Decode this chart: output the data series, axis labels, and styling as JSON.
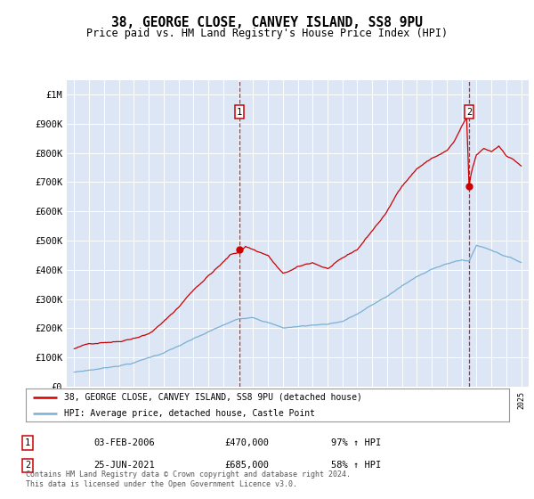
{
  "title1": "38, GEORGE CLOSE, CANVEY ISLAND, SS8 9PU",
  "title2": "Price paid vs. HM Land Registry's House Price Index (HPI)",
  "background_color": "white",
  "plot_bg": "#dce6f5",
  "sale1_date_num": 2006.09,
  "sale1_price": 470000,
  "sale1_label": "03-FEB-2006",
  "sale1_pct": "97% ↑ HPI",
  "sale2_date_num": 2021.49,
  "sale2_price": 685000,
  "sale2_label": "25-JUN-2021",
  "sale2_pct": "58% ↑ HPI",
  "legend1": "38, GEORGE CLOSE, CANVEY ISLAND, SS8 9PU (detached house)",
  "legend2": "HPI: Average price, detached house, Castle Point",
  "footnote": "Contains HM Land Registry data © Crown copyright and database right 2024.\nThis data is licensed under the Open Government Licence v3.0.",
  "red_color": "#cc0000",
  "blue_color": "#7ab0d4",
  "ylim_max": 1050000,
  "xlim_min": 1994.5,
  "xlim_max": 2025.5
}
